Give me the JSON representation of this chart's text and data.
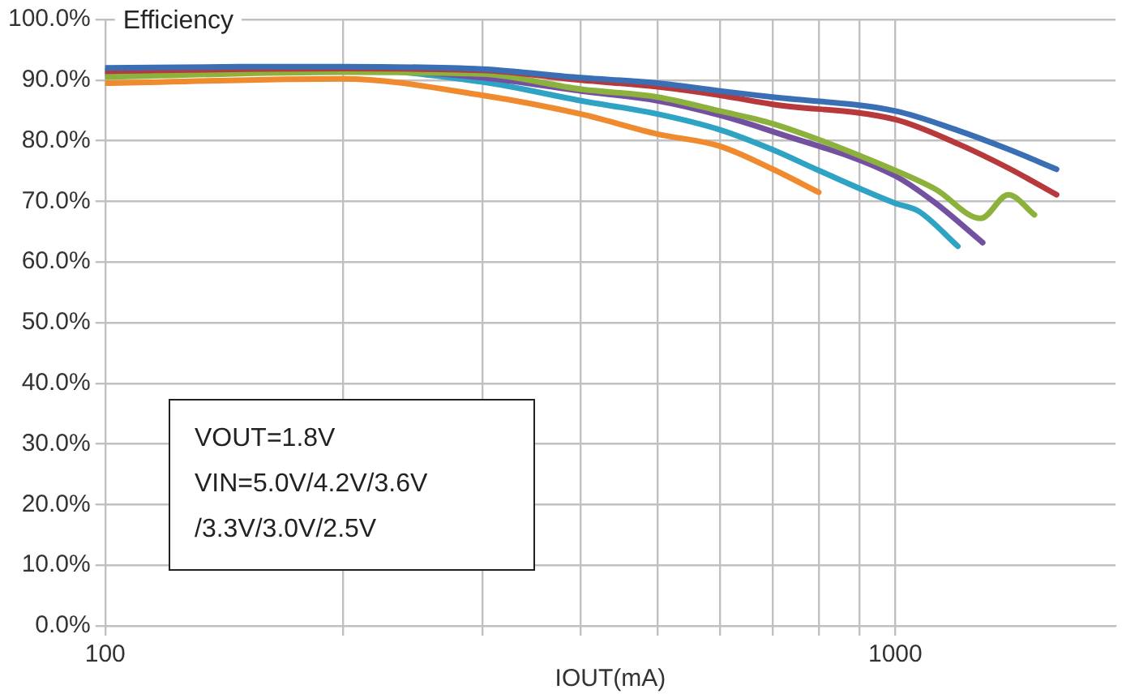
{
  "chart_data": {
    "type": "line",
    "title": "Efficiency",
    "xlabel": "IOUT(mA)",
    "log": "x",
    "grid": true,
    "legend": false,
    "marker": "none",
    "line_style": "solid",
    "xlim": [
      100,
      1900
    ],
    "xticks": [
      100,
      {
        "value": 200,
        "label": null
      },
      {
        "value": 300,
        "label": null
      },
      {
        "value": 400,
        "label": null
      },
      {
        "value": 500,
        "label": null
      },
      {
        "value": 600,
        "label": null
      },
      {
        "value": 700,
        "label": null
      },
      {
        "value": 800,
        "label": null
      },
      {
        "value": 900,
        "label": null
      },
      1000
    ],
    "ylim": [
      0,
      100
    ],
    "yticks": [
      {
        "value": 0,
        "label": "0.0%"
      },
      {
        "value": 10,
        "label": "10.0%"
      },
      {
        "value": 20,
        "label": "20.0%"
      },
      {
        "value": 30,
        "label": "30.0%"
      },
      {
        "value": 40,
        "label": "40.0%"
      },
      {
        "value": 50,
        "label": "50.0%"
      },
      {
        "value": 60,
        "label": "60.0%"
      },
      {
        "value": 70,
        "label": "70.0%"
      },
      {
        "value": 80,
        "label": "80.0%"
      },
      {
        "value": 90,
        "label": "90.0%"
      },
      {
        "value": 100,
        "label": "100.0%"
      }
    ],
    "annotations": [
      "VOUT=1.8V\nVIN=5.0V/4.2V/3.6V\n/3.3V/3.0V/2.5V"
    ],
    "series": [
      {
        "color": "#3a6fb5",
        "x": [
          100,
          150,
          200,
          300,
          400,
          500,
          600,
          700,
          1000,
          1200,
          1390,
          1600
        ],
        "values": [
          92.0,
          92.2,
          92.2,
          91.8,
          90.4,
          89.5,
          88.2,
          87.2,
          84.9,
          81.7,
          78.6,
          75.3
        ]
      },
      {
        "color": "#b8393c",
        "x": [
          100,
          150,
          200,
          300,
          400,
          500,
          600,
          700,
          1000,
          1200,
          1390,
          1600
        ],
        "values": [
          91.5,
          91.8,
          91.9,
          91.6,
          90.0,
          88.9,
          87.5,
          86.0,
          83.5,
          79.5,
          75.5,
          71.1
        ]
      },
      {
        "color": "#8cb13c",
        "x": [
          100,
          200,
          300,
          400,
          500,
          600,
          700,
          1000,
          1125,
          1283,
          1390,
          1500
        ],
        "values": [
          90.5,
          91.3,
          91.0,
          88.5,
          87.2,
          84.9,
          82.8,
          75.1,
          72.0,
          67.2,
          71.1,
          67.8
        ]
      },
      {
        "color": "#7451a0",
        "x": [
          100,
          200,
          300,
          400,
          500,
          600,
          700,
          1000,
          1125,
          1290
        ],
        "values": [
          91.0,
          91.8,
          90.4,
          88.2,
          86.6,
          84.2,
          81.5,
          74.2,
          69.7,
          63.2
        ]
      },
      {
        "color": "#2fa3c4",
        "x": [
          100,
          200,
          300,
          400,
          500,
          600,
          700,
          800,
          1000,
          1070,
          1200
        ],
        "values": [
          91.5,
          91.8,
          89.7,
          86.6,
          84.4,
          81.8,
          78.5,
          75.1,
          69.7,
          68.4,
          62.6
        ]
      },
      {
        "color": "#ef8a2e",
        "x": [
          100,
          200,
          300,
          400,
          500,
          600,
          700,
          800
        ],
        "values": [
          89.5,
          90.2,
          87.5,
          84.4,
          81.1,
          79.1,
          75.3,
          71.5
        ]
      }
    ]
  }
}
